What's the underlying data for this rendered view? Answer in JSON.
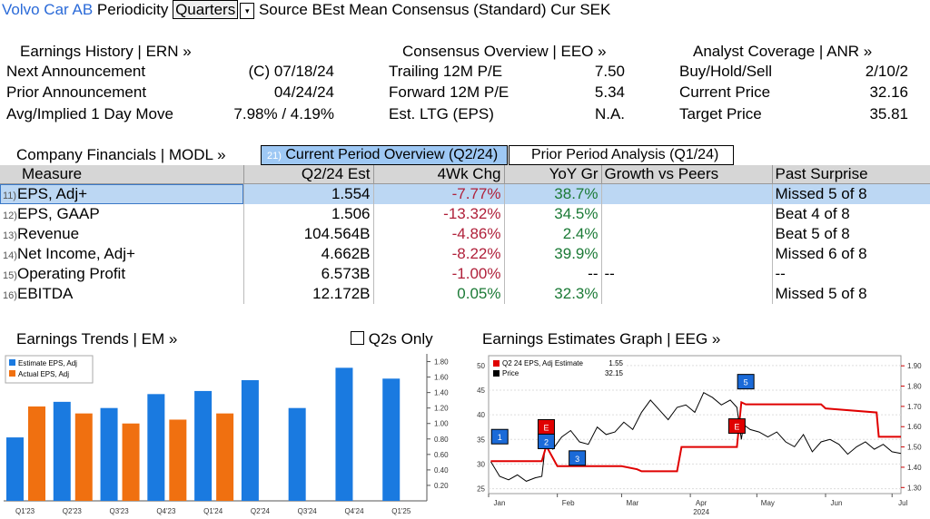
{
  "topbar": {
    "company": "Volvo Car AB",
    "periodicity_label": "Periodicity",
    "periodicity_value": "Quarters",
    "source_text": "Source BEst Mean Consensus (Standard) Cur SEK"
  },
  "earnings_history": {
    "title": "Earnings History | ERN »",
    "rows": [
      {
        "label": "Next Announcement",
        "value": "(C)  07/18/24"
      },
      {
        "label": "Prior Announcement",
        "value": "04/24/24"
      },
      {
        "label": "Avg/Implied 1 Day Move",
        "value": "7.98% / 4.19%"
      }
    ]
  },
  "consensus": {
    "title": "Consensus Overview | EEO »",
    "rows": [
      {
        "label": "Trailing 12M P/E",
        "value": "7.50"
      },
      {
        "label": "Forward 12M P/E",
        "value": "5.34"
      },
      {
        "label": "Est. LTG (EPS)",
        "value": "N.A."
      }
    ]
  },
  "analyst": {
    "title": "Analyst Coverage | ANR »",
    "rows": [
      {
        "label": "Buy/Hold/Sell",
        "value": "2/10/2"
      },
      {
        "label": "Current Price",
        "value": "32.16"
      },
      {
        "label": "Target Price",
        "value": "35.81"
      }
    ]
  },
  "financials": {
    "title": "Company Financials | MODL »",
    "tab_current": "Current Period Overview (Q2/24)",
    "tab_current_num": "21)",
    "tab_prior": "Prior Period Analysis (Q1/24)",
    "columns": [
      "Measure",
      "Q2/24 Est",
      "4Wk Chg",
      "YoY Gr",
      "Growth vs Peers",
      "Past Surprise"
    ],
    "rows": [
      {
        "num": "11)",
        "measure": "EPS, Adj+",
        "est": "1.554",
        "chg": "-7.77%",
        "yoy": "38.7%",
        "peers": "",
        "surprise": "Missed 5 of 8"
      },
      {
        "num": "12)",
        "measure": "EPS, GAAP",
        "est": "1.506",
        "chg": "-13.32%",
        "yoy": "34.5%",
        "peers": "",
        "surprise": "Beat 4 of 8"
      },
      {
        "num": "13)",
        "measure": "Revenue",
        "est": "104.564B",
        "chg": "-4.86%",
        "yoy": "2.4%",
        "peers": "",
        "surprise": "Beat 5 of 8"
      },
      {
        "num": "14)",
        "measure": "Net Income, Adj+",
        "est": "4.662B",
        "chg": "-8.22%",
        "yoy": "39.9%",
        "peers": "",
        "surprise": "Missed 6 of 8"
      },
      {
        "num": "15)",
        "measure": "Operating Profit",
        "est": "6.573B",
        "chg": "-1.00%",
        "yoy": "--",
        "peers": "--",
        "surprise": "--"
      },
      {
        "num": "16)",
        "measure": "EBITDA",
        "est": "12.172B",
        "chg": "0.05%",
        "yoy": "32.3%",
        "peers": "",
        "surprise": "Missed 5 of 8"
      }
    ]
  },
  "trends_panel": {
    "title": "Earnings Trends | EM »",
    "q2s_only_label": "Q2s Only"
  },
  "graph_panel": {
    "title": "Earnings Estimates Graph | EEG »"
  },
  "colors": {
    "estimate": "#1a7ae0",
    "actual": "#f07010",
    "estimate_line": "#e00000",
    "price_line": "#000000",
    "negative": "#b0203a",
    "positive": "#1b7a36",
    "accent": "#2a6ad8"
  },
  "chart_data": [
    {
      "type": "bar",
      "categories": [
        "Q1'23",
        "Q2'23",
        "Q3'23",
        "Q4'23",
        "Q1'24",
        "Q2'24",
        "Q3'24",
        "Q4'24",
        "Q1'25"
      ],
      "series": [
        {
          "name": "Estimate EPS, Adj",
          "values": [
            0.82,
            1.28,
            1.2,
            1.38,
            1.42,
            1.56,
            1.2,
            1.72,
            1.58
          ]
        },
        {
          "name": "Actual EPS, Adj",
          "values": [
            1.22,
            1.13,
            1.0,
            1.05,
            1.13,
            null,
            null,
            null,
            null
          ]
        }
      ],
      "ylim": [
        0,
        1.9
      ],
      "yticks": [
        "0.20",
        "0.40",
        "0.60",
        "0.80",
        "1.00",
        "1.20",
        "1.40",
        "1.60",
        "1.80"
      ],
      "legend": "top-left",
      "grid": false
    },
    {
      "type": "line",
      "xticks": [
        "Jan",
        "Feb",
        "Mar",
        "Apr",
        "May",
        "Jun",
        "Jul"
      ],
      "xyear": "2024",
      "left_yticks": [
        "25",
        "30",
        "35",
        "40",
        "45",
        "50"
      ],
      "right_yticks": [
        "1.30",
        "1.40",
        "1.50",
        "1.60",
        "1.70",
        "1.80",
        "1.90"
      ],
      "left_ylim": [
        24,
        52
      ],
      "right_ylim": [
        1.27,
        1.95
      ],
      "legend": [
        {
          "name": "Q2 24 EPS, Adj Estimate",
          "value": "1.55"
        },
        {
          "name": "Price",
          "value": "32.15"
        }
      ],
      "price_series": {
        "x": [
          "2024-01-02",
          "2024-01-06",
          "2024-01-10",
          "2024-01-14",
          "2024-01-18",
          "2024-01-22",
          "2024-01-25",
          "2024-01-27",
          "2024-01-30",
          "2024-02-03",
          "2024-02-07",
          "2024-02-11",
          "2024-02-15",
          "2024-02-19",
          "2024-02-23",
          "2024-02-27",
          "2024-03-02",
          "2024-03-06",
          "2024-03-10",
          "2024-03-14",
          "2024-03-18",
          "2024-03-22",
          "2024-03-26",
          "2024-03-30",
          "2024-04-03",
          "2024-04-07",
          "2024-04-11",
          "2024-04-15",
          "2024-04-19",
          "2024-04-22",
          "2024-04-24",
          "2024-04-25",
          "2024-04-28",
          "2024-05-02",
          "2024-05-06",
          "2024-05-10",
          "2024-05-14",
          "2024-05-18",
          "2024-05-22",
          "2024-05-26",
          "2024-05-30",
          "2024-06-03",
          "2024-06-07",
          "2024-06-11",
          "2024-06-15",
          "2024-06-19",
          "2024-06-23",
          "2024-06-27",
          "2024-07-01",
          "2024-07-05"
        ],
        "y": [
          30.5,
          27.5,
          26.8,
          27.8,
          26.5,
          27.2,
          27.5,
          35.5,
          33,
          35.5,
          36.8,
          34.5,
          34,
          37.5,
          36,
          36.5,
          38.5,
          37,
          40.5,
          43,
          41,
          39,
          41.5,
          42,
          40.5,
          44.5,
          43.5,
          42,
          43,
          41.5,
          35,
          38,
          37,
          36.5,
          35.5,
          36.5,
          34.5,
          33.5,
          36,
          32.5,
          34.5,
          35,
          34,
          32,
          33.5,
          34.5,
          33,
          34,
          32.5,
          32.15
        ]
      },
      "estimate_series": {
        "x": [
          "2024-01-02",
          "2024-01-25",
          "2024-01-27",
          "2024-02-01",
          "2024-02-10",
          "2024-03-01",
          "2024-03-08",
          "2024-03-10",
          "2024-03-26",
          "2024-03-28",
          "2024-04-03",
          "2024-04-05",
          "2024-04-22",
          "2024-04-24",
          "2024-04-26",
          "2024-05-10",
          "2024-05-30",
          "2024-06-01",
          "2024-06-24",
          "2024-06-25",
          "2024-06-30",
          "2024-07-05"
        ],
        "y": [
          1.43,
          1.43,
          1.505,
          1.405,
          1.405,
          1.405,
          1.39,
          1.38,
          1.38,
          1.5,
          1.5,
          1.5,
          1.5,
          1.72,
          1.71,
          1.71,
          1.71,
          1.69,
          1.67,
          1.55,
          1.55,
          1.55
        ]
      },
      "event_markers": [
        {
          "label": "1",
          "date": "2024-01-06"
        },
        {
          "label": "E",
          "date": "2024-01-27"
        },
        {
          "label": "2",
          "date": "2024-01-27"
        },
        {
          "label": "3",
          "date": "2024-02-10"
        },
        {
          "label": "E",
          "date": "2024-04-22"
        },
        {
          "label": "5",
          "date": "2024-04-26"
        }
      ]
    }
  ]
}
